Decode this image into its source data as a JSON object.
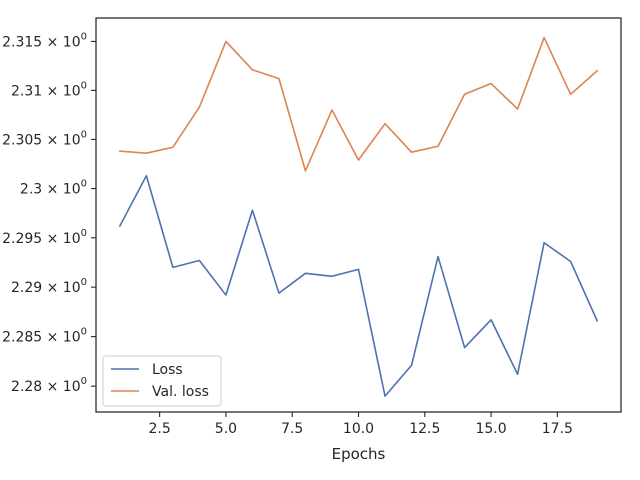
{
  "chart_data": {
    "type": "line",
    "title": "",
    "xlabel": "Epochs",
    "ylabel": "",
    "x": [
      1,
      2,
      3,
      4,
      5,
      6,
      7,
      8,
      9,
      10,
      11,
      12,
      13,
      14,
      15,
      16,
      17,
      18,
      19
    ],
    "xlim": [
      0.1,
      19.9
    ],
    "ylim": [
      2.2774,
      2.3174
    ],
    "yscale": "log",
    "grid": false,
    "legend_position": "lower-left",
    "x_ticks": [
      2.5,
      5.0,
      7.5,
      10.0,
      12.5,
      15.0,
      17.5
    ],
    "x_tick_labels": [
      "2.5",
      "5.0",
      "7.5",
      "10.0",
      "12.5",
      "15.0",
      "17.5"
    ],
    "y_ticks": [
      2.28,
      2.285,
      2.29,
      2.295,
      2.3,
      2.305,
      2.31,
      2.315
    ],
    "y_tick_mantissas": [
      "2.28",
      "2.285",
      "2.29",
      "2.295",
      "2.3",
      "2.305",
      "2.31",
      "2.315"
    ],
    "y_tick_multiplier": "×",
    "y_tick_base": "10",
    "y_tick_exponent": "0",
    "series": [
      {
        "name": "Loss",
        "color": "#4c72b0",
        "values": [
          2.2962,
          2.3013,
          2.292,
          2.2927,
          2.2892,
          2.2978,
          2.2894,
          2.2914,
          2.2911,
          2.2918,
          2.279,
          2.2821,
          2.2931,
          2.2839,
          2.2867,
          2.2812,
          2.2945,
          2.2926,
          2.2866
        ]
      },
      {
        "name": "Val. loss",
        "color": "#dd8452",
        "values": [
          2.3038,
          2.3036,
          2.3042,
          2.3083,
          2.315,
          2.3121,
          2.3112,
          2.3018,
          2.308,
          2.3029,
          2.3066,
          2.3037,
          2.3043,
          2.3096,
          2.3107,
          2.3081,
          2.3154,
          2.3096,
          2.312
        ]
      }
    ]
  }
}
